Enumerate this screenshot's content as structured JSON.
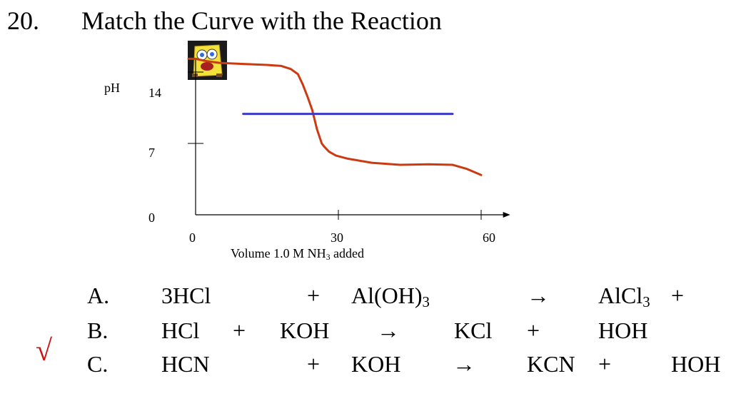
{
  "slide": {
    "number": "20.",
    "title": "Match the Curve with the Reaction"
  },
  "chart_data": {
    "type": "line",
    "ylabel": "pH",
    "xlabel_pre": "Volume 1.0 M NH",
    "xlabel_sub": "3",
    "xlabel_post": " added",
    "y_ticks": [
      "14",
      "7",
      "0"
    ],
    "x_ticks": [
      "0",
      "30",
      "60"
    ],
    "xlim": [
      0,
      64
    ],
    "ylim": [
      0,
      15.3
    ],
    "series": [
      {
        "color": "#cc3a12",
        "x": [
          -1.5,
          0,
          2,
          5,
          10,
          15,
          18,
          20,
          21.5,
          22.5,
          23.5,
          24.5,
          25.5,
          26.5,
          27,
          28,
          29.5,
          32,
          37,
          43,
          49,
          54,
          57,
          60
        ],
        "y": [
          15.3,
          15.3,
          15.1,
          14.9,
          14.8,
          14.7,
          14.6,
          14.3,
          13.8,
          12.8,
          11.6,
          10.3,
          8.4,
          7.0,
          6.7,
          6.2,
          5.8,
          5.5,
          5.1,
          4.9,
          4.95,
          4.9,
          4.5,
          3.9
        ]
      },
      {
        "color": "#3a3ac8",
        "x": [
          10,
          54
        ],
        "y": [
          9.9,
          9.9
        ]
      }
    ]
  },
  "reactions": [
    {
      "letter": "A.",
      "parts": [
        "3HCl",
        "+",
        "Al(OH)",
        "3",
        "→",
        "AlCl",
        "3",
        "+"
      ],
      "checked": false
    },
    {
      "letter": "B.",
      "parts": [
        "HCl",
        "+",
        "KOH",
        "→",
        "KCl",
        "+",
        "HOH"
      ],
      "checked": true
    },
    {
      "letter": "C.",
      "parts": [
        "HCN",
        "+",
        "KOH",
        "→",
        "KCN",
        "+",
        "HOH"
      ],
      "checked": false
    }
  ],
  "check_mark": "√",
  "icons": {
    "avatar": "spongebob-avatar-icon"
  }
}
